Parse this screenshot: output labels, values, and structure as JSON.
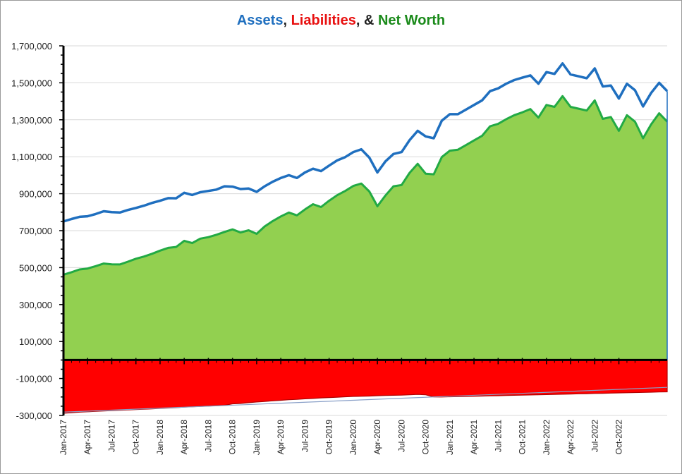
{
  "chart_data": {
    "type": "area",
    "title_parts": [
      {
        "text": "Assets",
        "color": "#1f6fbf"
      },
      {
        "text": ", ",
        "color": "#222222"
      },
      {
        "text": "Liabilities",
        "color": "#e81010"
      },
      {
        "text": ", & ",
        "color": "#222222"
      },
      {
        "text": "Net Worth",
        "color": "#1a8a1a"
      }
    ],
    "ylim": [
      -300000,
      1700000
    ],
    "yticks": [
      1700000,
      1500000,
      1300000,
      1100000,
      900000,
      700000,
      500000,
      300000,
      100000,
      -100000,
      -300000
    ],
    "ytick_labels": [
      "1,700,000",
      "1,500,000",
      "1,300,000",
      "1,100,000",
      "900,000",
      "700,000",
      "500,000",
      "300,000",
      "100,000",
      "-100,000",
      "-300,000"
    ],
    "xtick_labels": [
      "Jan-2017",
      "Apr-2017",
      "Jul-2017",
      "Oct-2017",
      "Jan-2018",
      "Apr-2018",
      "Jul-2018",
      "Oct-2018",
      "Jan-2019",
      "Apr-2019",
      "Jul-2019",
      "Oct-2019",
      "Jan-2020",
      "Apr-2020",
      "Jul-2020",
      "Oct-2020",
      "Jan-2021",
      "Apr-2021",
      "Jul-2021",
      "Oct-2021",
      "Jan-2022",
      "Apr-2022",
      "Jul-2022",
      "Oct-2022"
    ],
    "colors": {
      "assets": "#1f6fbf",
      "liabilities": "#ff0000",
      "net_worth_line": "#22aa44",
      "net_worth_fill": "#92d050",
      "trend": "#8aa0c8"
    },
    "series": [
      {
        "key": "assets",
        "values": [
          750000,
          763000,
          775000,
          778000,
          790000,
          805000,
          800000,
          798000,
          812000,
          823000,
          835000,
          850000,
          862000,
          876000,
          875000,
          905000,
          893000,
          908000,
          915000,
          922000,
          940000,
          938000,
          925000,
          928000,
          910000,
          940000,
          965000,
          985000,
          1000000,
          985000,
          1015000,
          1035000,
          1022000,
          1052000,
          1080000,
          1098000,
          1125000,
          1140000,
          1095000,
          1015000,
          1075000,
          1115000,
          1125000,
          1190000,
          1240000,
          1210000,
          1200000,
          1295000,
          1330000,
          1330000,
          1355000,
          1380000,
          1405000,
          1455000,
          1470000,
          1495000,
          1515000,
          1528000,
          1540000,
          1495000,
          1558000,
          1548000,
          1605000,
          1545000,
          1535000,
          1525000,
          1578000,
          1480000,
          1485000,
          1415000,
          1495000,
          1460000,
          1372000,
          1445000,
          1500000,
          1455000
        ]
      },
      {
        "key": "net_worth",
        "values": [
          462000,
          475000,
          490000,
          495000,
          508000,
          522000,
          518000,
          517000,
          532000,
          548000,
          560000,
          575000,
          592000,
          607000,
          612000,
          645000,
          633000,
          657000,
          665000,
          678000,
          693000,
          707000,
          690000,
          702000,
          683000,
          723000,
          752000,
          777000,
          798000,
          783000,
          815000,
          843000,
          828000,
          862000,
          892000,
          915000,
          942000,
          955000,
          912000,
          832000,
          890000,
          940000,
          947000,
          1013000,
          1062000,
          1008000,
          1005000,
          1098000,
          1133000,
          1138000,
          1163000,
          1188000,
          1213000,
          1265000,
          1278000,
          1303000,
          1325000,
          1340000,
          1358000,
          1312000,
          1380000,
          1370000,
          1428000,
          1370000,
          1360000,
          1350000,
          1405000,
          1305000,
          1315000,
          1240000,
          1325000,
          1290000,
          1200000,
          1275000,
          1335000,
          1290000
        ]
      },
      {
        "key": "liabilities",
        "values": [
          -288000,
          -285000,
          -282000,
          -280000,
          -278000,
          -276000,
          -274000,
          -272000,
          -270000,
          -268000,
          -266000,
          -264000,
          -262000,
          -260000,
          -258000,
          -255000,
          -253000,
          -251000,
          -249000,
          -247000,
          -245000,
          -237000,
          -235000,
          -231000,
          -227000,
          -224000,
          -221000,
          -218000,
          -215000,
          -213000,
          -210000,
          -208000,
          -205000,
          -203000,
          -201000,
          -199000,
          -197000,
          -196000,
          -195000,
          -193000,
          -192000,
          -191000,
          -190000,
          -188000,
          -186000,
          -188000,
          -200000,
          -200000,
          -199000,
          -198000,
          -197000,
          -196000,
          -195000,
          -194000,
          -193000,
          -192000,
          -191000,
          -190000,
          -189000,
          -188000,
          -187000,
          -186000,
          -185000,
          -184000,
          -183000,
          -182000,
          -181000,
          -180000,
          -179000,
          -178000,
          -177000,
          -176000,
          -175000,
          -174000,
          -173000,
          -172000
        ]
      }
    ],
    "trend_line": {
      "from": -282000,
      "to": -148000
    }
  }
}
